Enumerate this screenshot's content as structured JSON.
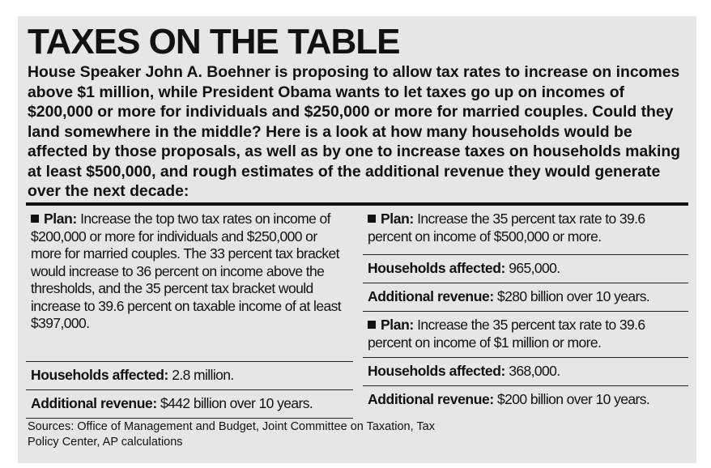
{
  "title": "TAXES ON THE TABLE",
  "intro": "House Speaker John A. Boehner is proposing to allow tax rates to increase on incomes above $1 million, while President Obama wants to let taxes go up on incomes of $200,000 or more for individuals and $250,000 or more for married couples. Could they land somewhere in the middle? Here is a look at how many households would be affected by those proposals, as well as by one to increase taxes on households making at least $500,000, and rough estimates of the additional revenue they would generate over the next decade:",
  "labels": {
    "plan": "Plan:",
    "households": "Households affected:",
    "revenue": "Additional revenue:"
  },
  "proposals": [
    {
      "plan": "Increase the top two tax rates on income of $200,000 or more for individuals and $250,000 or more for married couples. The 33 percent tax bracket would increase to 36 percent on income above the thresholds, and the 35 percent tax bracket would increase to 39.6 percent on taxable income of at least $397,000.",
      "households": "2.8 million.",
      "revenue": "$442 billion over 10 years."
    },
    {
      "plan": "Increase the 35 percent tax rate to 39.6 percent on income of $500,000 or more.",
      "households": "965,000.",
      "revenue": "$280 billion over 10 years."
    },
    {
      "plan": "Increase the 35 percent tax rate to 39.6 percent on income of $1 million or more.",
      "households": "368,000.",
      "revenue": "$200 billion over 10 years."
    }
  ],
  "sources": "Sources: Office of Management and Budget, Joint Committee on Taxation, Tax Policy Center, AP calculations"
}
